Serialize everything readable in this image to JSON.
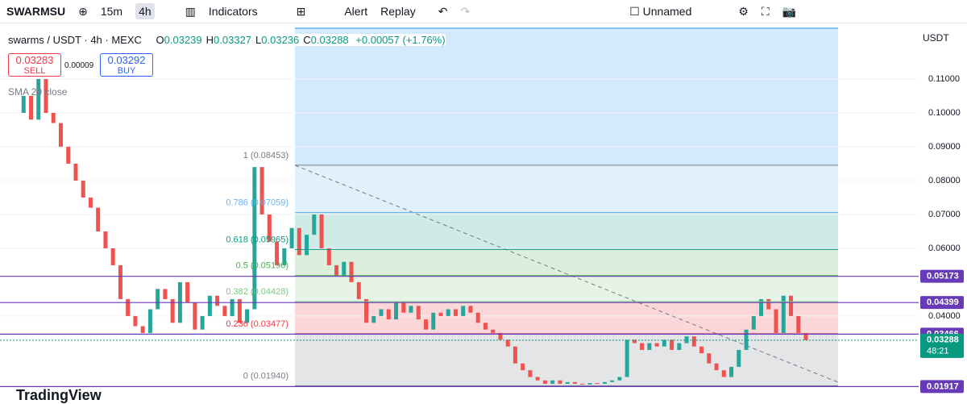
{
  "toolbar": {
    "symbol": "SWARMSU",
    "intervals": [
      "15m",
      "4h"
    ],
    "indicators": "Indicators",
    "alert": "Alert",
    "replay": "Replay",
    "layout": "Unnamed"
  },
  "legend": {
    "title": "swarms / USDT · 4h · MEXC",
    "ohlc": [
      {
        "key": "O",
        "value": "0.03239"
      },
      {
        "key": "H",
        "value": "0.03327"
      },
      {
        "key": "L",
        "value": "0.03236"
      },
      {
        "key": "C",
        "value": "0.03288"
      }
    ],
    "change": "+0.00057 (+1.76%)",
    "sell": {
      "price": "0.03283",
      "label": "SELL"
    },
    "spread": "0.00009",
    "buy": {
      "price": "0.03292",
      "label": "BUY"
    },
    "indicator": "SMA 20 close"
  },
  "price_axis": {
    "currency": "USDT",
    "ylim": [
      0.0145,
      0.125
    ],
    "ticks": [
      {
        "value": 0.11,
        "label": "0.11000"
      },
      {
        "value": 0.1,
        "label": "0.10000"
      },
      {
        "value": 0.09,
        "label": "0.09000"
      },
      {
        "value": 0.08,
        "label": "0.08000"
      },
      {
        "value": 0.07,
        "label": "0.07000"
      },
      {
        "value": 0.06,
        "label": "0.06000"
      },
      {
        "value": 0.04,
        "label": "0.04000"
      }
    ]
  },
  "horizontal_lines": [
    {
      "value": 0.05173,
      "label": "0.05173"
    },
    {
      "value": 0.04399,
      "label": "0.04399"
    },
    {
      "value": 0.03466,
      "label": "0.03466"
    },
    {
      "value": 0.01917,
      "label": "0.01917"
    }
  ],
  "current_price": {
    "value": 0.03288,
    "label": "0.03288",
    "countdown": "48:21"
  },
  "fib": {
    "levels": [
      {
        "label": "1 (0.08453)",
        "value": 0.08453,
        "color": "#787b86"
      },
      {
        "label": "0.786 (0.07059)",
        "value": 0.07059,
        "color": "#64b5f6"
      },
      {
        "label": "0.618 (0.05965)",
        "value": 0.05965,
        "color": "#089981"
      },
      {
        "label": "0.5 (0.05196)",
        "value": 0.05196,
        "color": "#4caf50"
      },
      {
        "label": "0.382 (0.04428)",
        "value": 0.04428,
        "color": "#81c784"
      },
      {
        "label": "0.236 (0.03477)",
        "value": 0.03477,
        "color": "#f23645"
      },
      {
        "label": "0 (0.01940)",
        "value": 0.0194,
        "color": "#787b86"
      }
    ]
  },
  "candles": [
    0.1,
    0.105,
    0.098,
    0.11,
    0.1,
    0.097,
    0.09,
    0.085,
    0.08,
    0.075,
    0.072,
    0.065,
    0.06,
    0.055,
    0.045,
    0.04,
    0.037,
    0.035,
    0.042,
    0.048,
    0.045,
    0.038,
    0.05,
    0.044,
    0.036,
    0.04,
    0.046,
    0.043,
    0.04,
    0.045,
    0.038,
    0.042,
    0.084,
    0.07,
    0.062,
    0.055,
    0.06,
    0.066,
    0.058,
    0.064,
    0.07,
    0.06,
    0.055,
    0.052,
    0.056,
    0.05,
    0.045,
    0.038,
    0.04,
    0.042,
    0.039,
    0.044,
    0.041,
    0.043,
    0.039,
    0.036,
    0.041,
    0.04,
    0.042,
    0.04,
    0.043,
    0.041,
    0.038,
    0.036,
    0.035,
    0.033,
    0.031,
    0.026,
    0.024,
    0.022,
    0.021,
    0.02,
    0.021,
    0.02,
    0.0205,
    0.02,
    0.0198,
    0.0202,
    0.02,
    0.0205,
    0.021,
    0.022,
    0.033,
    0.032,
    0.03,
    0.032,
    0.031,
    0.033,
    0.03,
    0.032,
    0.034,
    0.031,
    0.029,
    0.026,
    0.024,
    0.022,
    0.025,
    0.03,
    0.036,
    0.04,
    0.045,
    0.042,
    0.035,
    0.046,
    0.04,
    0.035,
    0.0329
  ],
  "branding": "TradingView"
}
